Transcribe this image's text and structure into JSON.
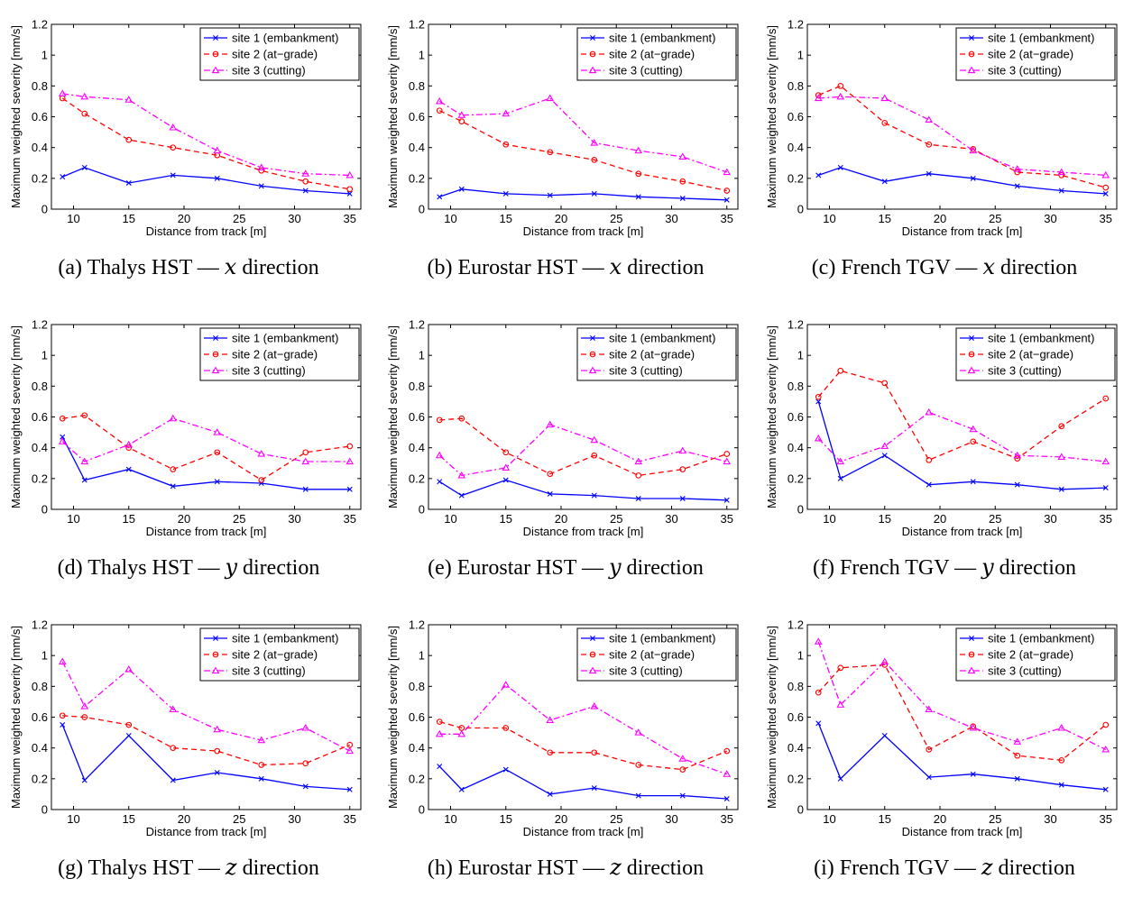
{
  "chart_data": [
    {
      "type": "line",
      "panel": "a",
      "caption_prefix": "(a)",
      "caption_label": "Thalys HST —",
      "caption_var": "x",
      "caption_suffix": "direction",
      "xlabel": "Distance from track  [m]",
      "ylabel": "Maximum weighted severity  [mm/s]",
      "xlim": [
        8,
        36
      ],
      "ylim": [
        0,
        1.2
      ],
      "xticks": [
        10,
        15,
        20,
        25,
        30,
        35
      ],
      "yticks": [
        0,
        0.2,
        0.4,
        0.6,
        0.8,
        1,
        1.2
      ],
      "legend_position": "top-right",
      "x": [
        9,
        11,
        15,
        19,
        23,
        27,
        31,
        35
      ],
      "series": [
        {
          "name": "site 1 (embankment)",
          "color": "#0000ff",
          "dash": "solid",
          "marker": "x",
          "values": [
            0.21,
            0.27,
            0.17,
            0.22,
            0.2,
            0.15,
            0.12,
            0.1
          ]
        },
        {
          "name": "site 2 (at−grade)",
          "color": "#ff0000",
          "dash": "dashed",
          "marker": "circle",
          "values": [
            0.72,
            0.62,
            0.45,
            0.4,
            0.35,
            0.25,
            0.18,
            0.13
          ]
        },
        {
          "name": "site 3 (cutting)",
          "color": "#ff00ff",
          "dash": "dashdot",
          "marker": "triangle",
          "values": [
            0.75,
            0.73,
            0.71,
            0.53,
            0.38,
            0.27,
            0.23,
            0.22
          ]
        }
      ]
    },
    {
      "type": "line",
      "panel": "b",
      "caption_prefix": "(b)",
      "caption_label": "Eurostar HST —",
      "caption_var": "x",
      "caption_suffix": "direction",
      "xlabel": "Distance from track  [m]",
      "ylabel": "Maximum weighted severity  [mm/s]",
      "xlim": [
        8,
        36
      ],
      "ylim": [
        0,
        1.2
      ],
      "xticks": [
        10,
        15,
        20,
        25,
        30,
        35
      ],
      "yticks": [
        0,
        0.2,
        0.4,
        0.6,
        0.8,
        1,
        1.2
      ],
      "legend_position": "top-right",
      "x": [
        9,
        11,
        15,
        19,
        23,
        27,
        31,
        35
      ],
      "series": [
        {
          "name": "site 1 (embankment)",
          "color": "#0000ff",
          "dash": "solid",
          "marker": "x",
          "values": [
            0.08,
            0.13,
            0.1,
            0.09,
            0.1,
            0.08,
            0.07,
            0.06
          ]
        },
        {
          "name": "site 2 (at−grade)",
          "color": "#ff0000",
          "dash": "dashed",
          "marker": "circle",
          "values": [
            0.64,
            0.57,
            0.42,
            0.37,
            0.32,
            0.23,
            0.18,
            0.12
          ]
        },
        {
          "name": "site 3 (cutting)",
          "color": "#ff00ff",
          "dash": "dashdot",
          "marker": "triangle",
          "values": [
            0.7,
            0.61,
            0.62,
            0.72,
            0.43,
            0.38,
            0.34,
            0.24
          ]
        }
      ]
    },
    {
      "type": "line",
      "panel": "c",
      "caption_prefix": "(c)",
      "caption_label": "French TGV —",
      "caption_var": "x",
      "caption_suffix": "direction",
      "xlabel": "Distance from track  [m]",
      "ylabel": "Maximum weighted severity  [mm/s]",
      "xlim": [
        8,
        36
      ],
      "ylim": [
        0,
        1.2
      ],
      "xticks": [
        10,
        15,
        20,
        25,
        30,
        35
      ],
      "yticks": [
        0,
        0.2,
        0.4,
        0.6,
        0.8,
        1,
        1.2
      ],
      "legend_position": "top-right",
      "x": [
        9,
        11,
        15,
        19,
        23,
        27,
        31,
        35
      ],
      "series": [
        {
          "name": "site 1 (embankment)",
          "color": "#0000ff",
          "dash": "solid",
          "marker": "x",
          "values": [
            0.22,
            0.27,
            0.18,
            0.23,
            0.2,
            0.15,
            0.12,
            0.1
          ]
        },
        {
          "name": "site 2 (at−grade)",
          "color": "#ff0000",
          "dash": "dashed",
          "marker": "circle",
          "values": [
            0.74,
            0.8,
            0.56,
            0.42,
            0.39,
            0.24,
            0.22,
            0.14
          ]
        },
        {
          "name": "site 3 (cutting)",
          "color": "#ff00ff",
          "dash": "dashdot",
          "marker": "triangle",
          "values": [
            0.72,
            0.73,
            0.72,
            0.58,
            0.38,
            0.26,
            0.24,
            0.22
          ]
        }
      ]
    },
    {
      "type": "line",
      "panel": "d",
      "caption_prefix": "(d)",
      "caption_label": "Thalys HST —",
      "caption_var": "y",
      "caption_suffix": "direction",
      "xlabel": "Distance from track  [m]",
      "ylabel": "Maximum weighted severity  [mm/s]",
      "xlim": [
        8,
        36
      ],
      "ylim": [
        0,
        1.2
      ],
      "xticks": [
        10,
        15,
        20,
        25,
        30,
        35
      ],
      "yticks": [
        0,
        0.2,
        0.4,
        0.6,
        0.8,
        1,
        1.2
      ],
      "legend_position": "top-right",
      "x": [
        9,
        11,
        15,
        19,
        23,
        27,
        31,
        35
      ],
      "series": [
        {
          "name": "site 1 (embankment)",
          "color": "#0000ff",
          "dash": "solid",
          "marker": "x",
          "values": [
            0.47,
            0.19,
            0.26,
            0.15,
            0.18,
            0.17,
            0.13,
            0.13
          ]
        },
        {
          "name": "site 2 (at−grade)",
          "color": "#ff0000",
          "dash": "dashed",
          "marker": "circle",
          "values": [
            0.59,
            0.61,
            0.4,
            0.26,
            0.37,
            0.19,
            0.37,
            0.41
          ]
        },
        {
          "name": "site 3 (cutting)",
          "color": "#ff00ff",
          "dash": "dashdot",
          "marker": "triangle",
          "values": [
            0.44,
            0.31,
            0.42,
            0.59,
            0.5,
            0.36,
            0.31,
            0.31
          ]
        }
      ]
    },
    {
      "type": "line",
      "panel": "e",
      "caption_prefix": "(e)",
      "caption_label": "Eurostar HST —",
      "caption_var": "y",
      "caption_suffix": "direction",
      "xlabel": "Distance from track  [m]",
      "ylabel": "Maximum weighted severity  [mm/s]",
      "xlim": [
        8,
        36
      ],
      "ylim": [
        0,
        1.2
      ],
      "xticks": [
        10,
        15,
        20,
        25,
        30,
        35
      ],
      "yticks": [
        0,
        0.2,
        0.4,
        0.6,
        0.8,
        1,
        1.2
      ],
      "legend_position": "top-right",
      "x": [
        9,
        11,
        15,
        19,
        23,
        27,
        31,
        35
      ],
      "series": [
        {
          "name": "site 1 (embankment)",
          "color": "#0000ff",
          "dash": "solid",
          "marker": "x",
          "values": [
            0.18,
            0.09,
            0.19,
            0.1,
            0.09,
            0.07,
            0.07,
            0.06
          ]
        },
        {
          "name": "site 2 (at−grade)",
          "color": "#ff0000",
          "dash": "dashed",
          "marker": "circle",
          "values": [
            0.58,
            0.59,
            0.37,
            0.23,
            0.35,
            0.22,
            0.26,
            0.36
          ]
        },
        {
          "name": "site 3 (cutting)",
          "color": "#ff00ff",
          "dash": "dashdot",
          "marker": "triangle",
          "values": [
            0.35,
            0.22,
            0.27,
            0.55,
            0.45,
            0.31,
            0.38,
            0.31
          ]
        }
      ]
    },
    {
      "type": "line",
      "panel": "f",
      "caption_prefix": "(f)",
      "caption_label": "French TGV —",
      "caption_var": "y",
      "caption_suffix": "direction",
      "xlabel": "Distance from track  [m]",
      "ylabel": "Maximum weighted severity  [mm/s]",
      "xlim": [
        8,
        36
      ],
      "ylim": [
        0,
        1.2
      ],
      "xticks": [
        10,
        15,
        20,
        25,
        30,
        35
      ],
      "yticks": [
        0,
        0.2,
        0.4,
        0.6,
        0.8,
        1,
        1.2
      ],
      "legend_position": "top-right",
      "x": [
        9,
        11,
        15,
        19,
        23,
        27,
        31,
        35
      ],
      "series": [
        {
          "name": "site 1 (embankment)",
          "color": "#0000ff",
          "dash": "solid",
          "marker": "x",
          "values": [
            0.7,
            0.2,
            0.35,
            0.16,
            0.18,
            0.16,
            0.13,
            0.14
          ]
        },
        {
          "name": "site 2 (at−grade)",
          "color": "#ff0000",
          "dash": "dashed",
          "marker": "circle",
          "values": [
            0.73,
            0.9,
            0.82,
            0.32,
            0.44,
            0.33,
            0.54,
            0.72
          ]
        },
        {
          "name": "site 3 (cutting)",
          "color": "#ff00ff",
          "dash": "dashdot",
          "marker": "triangle",
          "values": [
            0.46,
            0.31,
            0.41,
            0.63,
            0.52,
            0.35,
            0.34,
            0.31
          ]
        }
      ]
    },
    {
      "type": "line",
      "panel": "g",
      "caption_prefix": "(g)",
      "caption_label": "Thalys HST —",
      "caption_var": "z",
      "caption_suffix": "direction",
      "xlabel": "Distance from track  [m]",
      "ylabel": "Maximum weighted severity  [mm/s]",
      "xlim": [
        8,
        36
      ],
      "ylim": [
        0,
        1.2
      ],
      "xticks": [
        10,
        15,
        20,
        25,
        30,
        35
      ],
      "yticks": [
        0,
        0.2,
        0.4,
        0.6,
        0.8,
        1,
        1.2
      ],
      "legend_position": "top-right",
      "x": [
        9,
        11,
        15,
        19,
        23,
        27,
        31,
        35
      ],
      "series": [
        {
          "name": "site 1 (embankment)",
          "color": "#0000ff",
          "dash": "solid",
          "marker": "x",
          "values": [
            0.55,
            0.19,
            0.48,
            0.19,
            0.24,
            0.2,
            0.15,
            0.13
          ]
        },
        {
          "name": "site 2 (at−grade)",
          "color": "#ff0000",
          "dash": "dashed",
          "marker": "circle",
          "values": [
            0.61,
            0.6,
            0.55,
            0.4,
            0.38,
            0.29,
            0.3,
            0.42
          ]
        },
        {
          "name": "site 3 (cutting)",
          "color": "#ff00ff",
          "dash": "dashdot",
          "marker": "triangle",
          "values": [
            0.96,
            0.67,
            0.91,
            0.65,
            0.52,
            0.45,
            0.53,
            0.38
          ]
        }
      ]
    },
    {
      "type": "line",
      "panel": "h",
      "caption_prefix": "(h)",
      "caption_label": "Eurostar HST —",
      "caption_var": "z",
      "caption_suffix": "direction",
      "xlabel": "Distance from track  [m]",
      "ylabel": "Maximum weighted severity  [mm/s]",
      "xlim": [
        8,
        36
      ],
      "ylim": [
        0,
        1.2
      ],
      "xticks": [
        10,
        15,
        20,
        25,
        30,
        35
      ],
      "yticks": [
        0,
        0.2,
        0.4,
        0.6,
        0.8,
        1,
        1.2
      ],
      "legend_position": "top-right",
      "x": [
        9,
        11,
        15,
        19,
        23,
        27,
        31,
        35
      ],
      "series": [
        {
          "name": "site 1 (embankment)",
          "color": "#0000ff",
          "dash": "solid",
          "marker": "x",
          "values": [
            0.28,
            0.13,
            0.26,
            0.1,
            0.14,
            0.09,
            0.09,
            0.07
          ]
        },
        {
          "name": "site 2 (at−grade)",
          "color": "#ff0000",
          "dash": "dashed",
          "marker": "circle",
          "values": [
            0.57,
            0.53,
            0.53,
            0.37,
            0.37,
            0.29,
            0.26,
            0.38
          ]
        },
        {
          "name": "site 3 (cutting)",
          "color": "#ff00ff",
          "dash": "dashdot",
          "marker": "triangle",
          "values": [
            0.49,
            0.49,
            0.81,
            0.58,
            0.67,
            0.5,
            0.33,
            0.23
          ]
        }
      ]
    },
    {
      "type": "line",
      "panel": "i",
      "caption_prefix": "(i)",
      "caption_label": "French TGV —",
      "caption_var": "z",
      "caption_suffix": "direction",
      "xlabel": "Distance from track  [m]",
      "ylabel": "Maximum weighted severity  [mm/s]",
      "xlim": [
        8,
        36
      ],
      "ylim": [
        0,
        1.2
      ],
      "xticks": [
        10,
        15,
        20,
        25,
        30,
        35
      ],
      "yticks": [
        0,
        0.2,
        0.4,
        0.6,
        0.8,
        1,
        1.2
      ],
      "legend_position": "top-right",
      "x": [
        9,
        11,
        15,
        19,
        23,
        27,
        31,
        35
      ],
      "series": [
        {
          "name": "site 1 (embankment)",
          "color": "#0000ff",
          "dash": "solid",
          "marker": "x",
          "values": [
            0.56,
            0.2,
            0.48,
            0.21,
            0.23,
            0.2,
            0.16,
            0.13
          ]
        },
        {
          "name": "site 2 (at−grade)",
          "color": "#ff0000",
          "dash": "dashed",
          "marker": "circle",
          "values": [
            0.76,
            0.92,
            0.94,
            0.39,
            0.54,
            0.35,
            0.32,
            0.55
          ]
        },
        {
          "name": "site 3 (cutting)",
          "color": "#ff00ff",
          "dash": "dashdot",
          "marker": "triangle",
          "values": [
            1.09,
            0.68,
            0.96,
            0.65,
            0.53,
            0.44,
            0.53,
            0.39
          ]
        }
      ]
    }
  ]
}
